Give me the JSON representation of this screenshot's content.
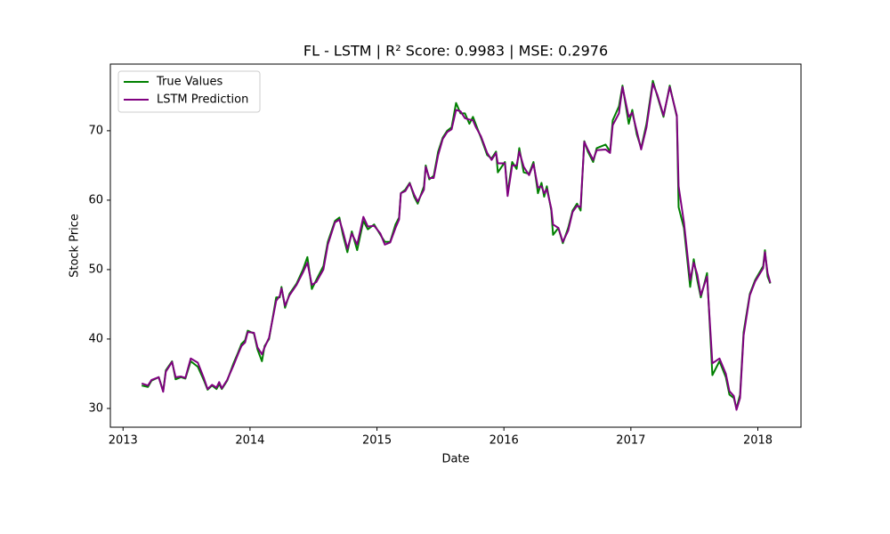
{
  "chart_data": {
    "type": "line",
    "title": "FL - LSTM | R² Score: 0.9983 | MSE: 0.2976",
    "xlabel": "Date",
    "ylabel": "Stock Price",
    "legend": "upper left",
    "xlim": [
      2012.9,
      2018.34
    ],
    "xticks": [
      2013,
      2014,
      2015,
      2016,
      2017,
      2018
    ],
    "ylim": [
      27.3,
      79.6
    ],
    "yticks": [
      30,
      40,
      50,
      60,
      70
    ],
    "x": [
      2013.147,
      2013.196,
      2013.224,
      2013.281,
      2013.316,
      2013.337,
      2013.386,
      2013.414,
      2013.456,
      2013.491,
      2013.533,
      2013.589,
      2013.638,
      2013.666,
      2013.701,
      2013.736,
      2013.757,
      2013.778,
      2013.82,
      2013.87,
      2013.905,
      2013.933,
      2013.961,
      2013.982,
      2014.031,
      2014.059,
      2014.094,
      2014.115,
      2014.15,
      2014.206,
      2014.234,
      2014.248,
      2014.276,
      2014.311,
      2014.367,
      2014.417,
      2014.452,
      2014.487,
      2014.522,
      2014.578,
      2014.613,
      2014.669,
      2014.704,
      2014.732,
      2014.767,
      2014.802,
      2014.844,
      2014.893,
      2014.928,
      2014.978,
      2015.027,
      2015.062,
      2015.104,
      2015.146,
      2015.174,
      2015.188,
      2015.223,
      2015.258,
      2015.293,
      2015.321,
      2015.37,
      2015.384,
      2015.412,
      2015.447,
      2015.482,
      2015.518,
      2015.553,
      2015.588,
      2015.623,
      2015.658,
      2015.693,
      2015.728,
      2015.756,
      2015.777,
      2015.819,
      2015.868,
      2015.903,
      2015.938,
      2015.952,
      2016.008,
      2016.029,
      2016.065,
      2016.1,
      2016.121,
      2016.156,
      2016.198,
      2016.233,
      2016.268,
      2016.296,
      2016.317,
      2016.338,
      2016.373,
      2016.387,
      2016.429,
      2016.464,
      2016.506,
      2016.541,
      2016.576,
      2016.604,
      2016.633,
      2016.661,
      2016.703,
      2016.731,
      2016.801,
      2016.836,
      2016.857,
      2016.906,
      2016.934,
      2016.983,
      2017.011,
      2017.046,
      2017.081,
      2017.123,
      2017.173,
      2017.208,
      2017.257,
      2017.306,
      2017.362,
      2017.376,
      2017.418,
      2017.467,
      2017.495,
      2017.523,
      2017.551,
      2017.6,
      2017.642,
      2017.698,
      2017.748,
      2017.776,
      2017.811,
      2017.832,
      2017.86,
      2017.888,
      2017.937,
      2017.979,
      2018.042,
      2018.056,
      2018.077,
      2018.098
    ],
    "series": [
      {
        "name": "True Values",
        "color": "#008000",
        "values": [
          33.3,
          33.1,
          34.0,
          34.5,
          32.5,
          35.5,
          36.8,
          34.2,
          34.5,
          34.3,
          36.8,
          36.0,
          34.0,
          32.7,
          33.3,
          32.8,
          33.5,
          32.8,
          34.0,
          36.5,
          38.0,
          39.3,
          39.8,
          41.2,
          40.8,
          38.5,
          36.8,
          39.0,
          40.0,
          46.0,
          46.0,
          47.5,
          44.5,
          46.5,
          48.0,
          50.0,
          51.8,
          47.2,
          48.5,
          50.5,
          54.0,
          57.0,
          57.5,
          55.0,
          52.5,
          55.5,
          52.8,
          57.0,
          55.8,
          56.5,
          55.0,
          54.0,
          54.0,
          56.5,
          57.5,
          61.0,
          61.5,
          62.5,
          60.5,
          59.5,
          62.0,
          65.0,
          63.0,
          63.5,
          67.0,
          69.0,
          70.0,
          70.5,
          74.0,
          72.5,
          72.5,
          71.0,
          72.0,
          71.0,
          69.0,
          66.5,
          66.0,
          67.0,
          64.0,
          65.5,
          61.0,
          65.5,
          64.5,
          67.5,
          64.0,
          63.8,
          65.5,
          61.0,
          62.5,
          60.5,
          62.0,
          58.5,
          55.0,
          56.0,
          53.8,
          56.0,
          58.5,
          59.5,
          58.5,
          68.5,
          67.0,
          65.5,
          67.5,
          68.0,
          67.0,
          71.5,
          73.5,
          76.5,
          71.0,
          73.0,
          69.5,
          67.5,
          71.0,
          77.2,
          75.0,
          72.0,
          76.5,
          72.0,
          59.0,
          56.0,
          47.5,
          51.5,
          48.5,
          46.0,
          49.5,
          34.8,
          36.8,
          34.5,
          32.0,
          31.5,
          30.0,
          32.0,
          41.0,
          46.5,
          48.5,
          50.5,
          52.8,
          49.0,
          48.0
        ]
      },
      {
        "name": "LSTM Prediction",
        "color": "#800080",
        "values": [
          33.6,
          33.3,
          34.1,
          34.5,
          32.4,
          35.3,
          36.7,
          34.5,
          34.6,
          34.4,
          37.2,
          36.6,
          34.3,
          32.8,
          33.4,
          33.0,
          33.8,
          32.9,
          34.1,
          36.2,
          37.8,
          39.0,
          39.5,
          41.0,
          40.9,
          38.8,
          37.8,
          38.8,
          40.2,
          45.5,
          46.2,
          47.3,
          44.8,
          46.3,
          47.8,
          49.6,
          51.0,
          47.8,
          48.2,
          50.0,
          53.6,
          56.8,
          57.2,
          55.5,
          53.0,
          55.2,
          53.6,
          57.6,
          56.2,
          56.3,
          55.2,
          53.6,
          53.9,
          56.0,
          57.2,
          61.0,
          61.3,
          62.4,
          60.8,
          59.8,
          61.5,
          64.8,
          63.2,
          63.2,
          66.5,
          68.8,
          69.8,
          70.2,
          73.0,
          72.8,
          71.8,
          71.6,
          71.5,
          70.6,
          69.2,
          66.8,
          65.8,
          66.8,
          65.3,
          65.3,
          60.6,
          65.0,
          65.0,
          67.0,
          64.8,
          63.6,
          65.2,
          61.8,
          62.0,
          61.0,
          61.6,
          58.8,
          56.5,
          56.0,
          54.0,
          55.6,
          58.3,
          59.2,
          59.0,
          68.4,
          67.3,
          65.8,
          67.2,
          67.3,
          66.8,
          70.8,
          72.5,
          76.3,
          72.0,
          72.6,
          70.0,
          67.3,
          70.5,
          76.8,
          75.2,
          72.2,
          76.3,
          72.2,
          62.0,
          56.8,
          48.5,
          51.0,
          49.3,
          46.3,
          49.0,
          36.5,
          37.2,
          35.0,
          32.5,
          31.8,
          29.8,
          31.5,
          40.5,
          46.3,
          48.3,
          50.2,
          52.5,
          49.5,
          48.1
        ]
      }
    ]
  }
}
